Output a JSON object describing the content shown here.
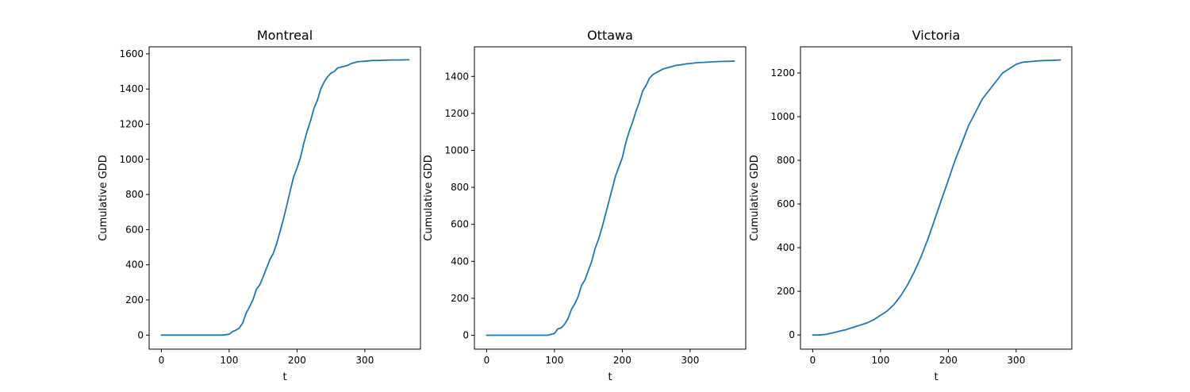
{
  "chart_data": [
    {
      "type": "line",
      "title": "Montreal",
      "xlabel": "t",
      "ylabel": "Cumulative GDD",
      "xlim": [
        -18,
        382
      ],
      "ylim": [
        -80,
        1640
      ],
      "xticks": [
        0,
        100,
        200,
        300
      ],
      "yticks": [
        0,
        200,
        400,
        600,
        800,
        1000,
        1200,
        1400,
        1600
      ],
      "grid": false,
      "series": [
        {
          "color": "#1f77b4",
          "x": [
            0,
            90,
            100,
            105,
            110,
            115,
            120,
            125,
            130,
            135,
            140,
            145,
            150,
            155,
            160,
            165,
            170,
            175,
            180,
            185,
            190,
            195,
            200,
            205,
            210,
            215,
            220,
            225,
            230,
            235,
            240,
            245,
            250,
            255,
            260,
            265,
            270,
            275,
            280,
            285,
            290,
            295,
            300,
            305,
            310,
            320,
            330,
            340,
            350,
            360,
            365
          ],
          "y": [
            0,
            0,
            5,
            20,
            28,
            40,
            70,
            125,
            160,
            200,
            260,
            285,
            330,
            380,
            430,
            465,
            520,
            590,
            660,
            740,
            820,
            900,
            950,
            1010,
            1090,
            1160,
            1220,
            1290,
            1335,
            1400,
            1440,
            1470,
            1490,
            1500,
            1520,
            1525,
            1530,
            1535,
            1545,
            1550,
            1555,
            1557,
            1558,
            1560,
            1562,
            1563,
            1564,
            1565,
            1565,
            1566,
            1566
          ]
        }
      ]
    },
    {
      "type": "line",
      "title": "Ottawa",
      "xlabel": "t",
      "ylabel": "Cumulative GDD",
      "xlim": [
        -18,
        382
      ],
      "ylim": [
        -75,
        1560
      ],
      "xticks": [
        0,
        100,
        200,
        300
      ],
      "yticks": [
        0,
        200,
        400,
        600,
        800,
        1000,
        1200,
        1400
      ],
      "grid": false,
      "series": [
        {
          "color": "#1f77b4",
          "x": [
            0,
            90,
            95,
            100,
            105,
            110,
            115,
            120,
            125,
            130,
            135,
            140,
            145,
            150,
            155,
            160,
            165,
            170,
            175,
            180,
            185,
            190,
            195,
            200,
            205,
            210,
            215,
            220,
            225,
            230,
            235,
            240,
            245,
            250,
            255,
            260,
            265,
            270,
            275,
            280,
            285,
            290,
            295,
            300,
            305,
            310,
            320,
            330,
            340,
            350,
            360,
            365
          ],
          "y": [
            0,
            0,
            5,
            10,
            35,
            40,
            60,
            90,
            140,
            170,
            210,
            270,
            300,
            350,
            400,
            470,
            520,
            580,
            650,
            720,
            790,
            860,
            910,
            960,
            1040,
            1100,
            1150,
            1210,
            1260,
            1320,
            1350,
            1390,
            1410,
            1420,
            1430,
            1440,
            1445,
            1450,
            1455,
            1460,
            1462,
            1465,
            1468,
            1470,
            1472,
            1474,
            1476,
            1478,
            1480,
            1481,
            1482,
            1483
          ]
        }
      ]
    },
    {
      "type": "line",
      "title": "Victoria",
      "xlabel": "t",
      "ylabel": "Cumulative GDD",
      "xlim": [
        -18,
        382
      ],
      "ylim": [
        -65,
        1320
      ],
      "xticks": [
        0,
        100,
        200,
        300
      ],
      "yticks": [
        0,
        200,
        400,
        600,
        800,
        1000,
        1200
      ],
      "grid": false,
      "series": [
        {
          "color": "#1f77b4",
          "x": [
            0,
            10,
            20,
            30,
            40,
            50,
            60,
            70,
            80,
            90,
            100,
            110,
            120,
            130,
            140,
            150,
            160,
            170,
            180,
            190,
            200,
            210,
            220,
            230,
            240,
            250,
            260,
            270,
            280,
            290,
            300,
            310,
            320,
            330,
            340,
            350,
            360,
            365
          ],
          "y": [
            0,
            0,
            3,
            10,
            18,
            25,
            35,
            45,
            55,
            70,
            90,
            110,
            140,
            180,
            230,
            290,
            360,
            440,
            530,
            620,
            710,
            800,
            880,
            960,
            1020,
            1080,
            1120,
            1160,
            1200,
            1220,
            1240,
            1250,
            1252,
            1255,
            1257,
            1258,
            1259,
            1260
          ]
        }
      ]
    }
  ]
}
